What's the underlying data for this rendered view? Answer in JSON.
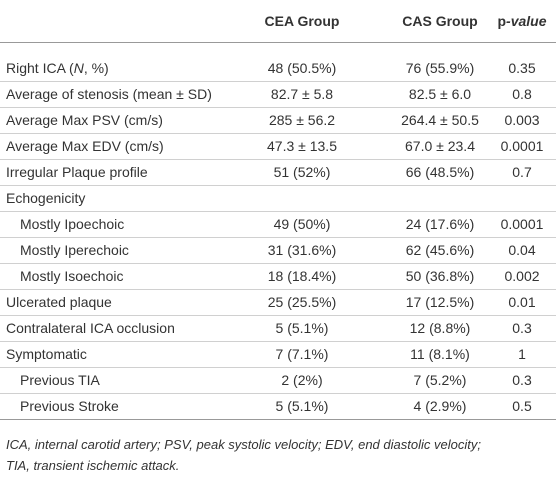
{
  "table": {
    "header": [
      "CEA Group",
      "CAS Group",
      [
        "p",
        "-value"
      ]
    ],
    "rows": [
      [
        [
          "Right ICA (",
          "N",
          ", %)"
        ],
        "48 (50.5%)",
        "76 (55.9%)",
        "0.35"
      ],
      [
        "Average of stenosis (mean ± SD)",
        "82.7 ± 5.8",
        "82.5 ± 6.0",
        "0.8"
      ],
      [
        "Average Max PSV (cm/s)",
        "285 ± 56.2",
        "264.4 ± 50.5",
        "0.003"
      ],
      [
        "Average Max EDV (cm/s)",
        "47.3 ± 13.5",
        "67.0 ± 23.4",
        "0.0001"
      ],
      [
        "Irregular Plaque profile",
        "51 (52%)",
        "66 (48.5%)",
        "0.7"
      ],
      [
        "Echogenicity"
      ],
      [
        "Mostly Ipoechoic",
        "49 (50%)",
        "24 (17.6%)",
        "0.0001"
      ],
      [
        "Mostly Iperechoic",
        "31 (31.6%)",
        "62 (45.6%)",
        "0.04"
      ],
      [
        "Mostly Isoechoic",
        "18 (18.4%)",
        "50 (36.8%)",
        "0.002"
      ],
      [
        "Ulcerated plaque",
        "25 (25.5%)",
        "17 (12.5%)",
        "0.01"
      ],
      [
        "Contralateral ICA occlusion",
        "5 (5.1%)",
        "12 (8.8%)",
        "0.3"
      ],
      [
        "Symptomatic",
        "7 (7.1%)",
        "11 (8.1%)",
        "1"
      ],
      [
        "Previous TIA",
        "2 (2%)",
        "7 (5.2%)",
        "0.3"
      ],
      [
        "Previous Stroke",
        "5 (5.1%)",
        "4 (2.9%)",
        "0.5"
      ]
    ],
    "footnote": [
      "ICA, internal carotid artery; PSV, peak systolic velocity; EDV, end diastolic velocity;",
      "TIA, transient ischemic attack."
    ]
  }
}
